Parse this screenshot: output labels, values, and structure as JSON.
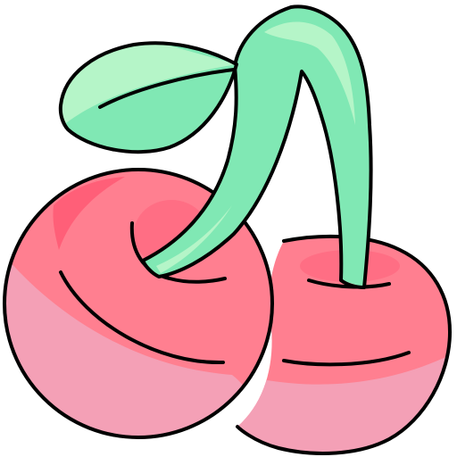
{
  "illustration": {
    "icon": "cherries-icon",
    "colors": {
      "outline": "#000000",
      "cherry_body": "#ff7f90",
      "cherry_shade": "#f4a0b6",
      "cherry_highlight": "#ff5f78",
      "cherry_dimple": "#ff6e84",
      "stem": "#80e8b4",
      "stem_highlight": "#b5f5c8",
      "leaf": "#80e8b4",
      "leaf_highlight": "#b5f5c8",
      "background": "#ffffff"
    }
  }
}
